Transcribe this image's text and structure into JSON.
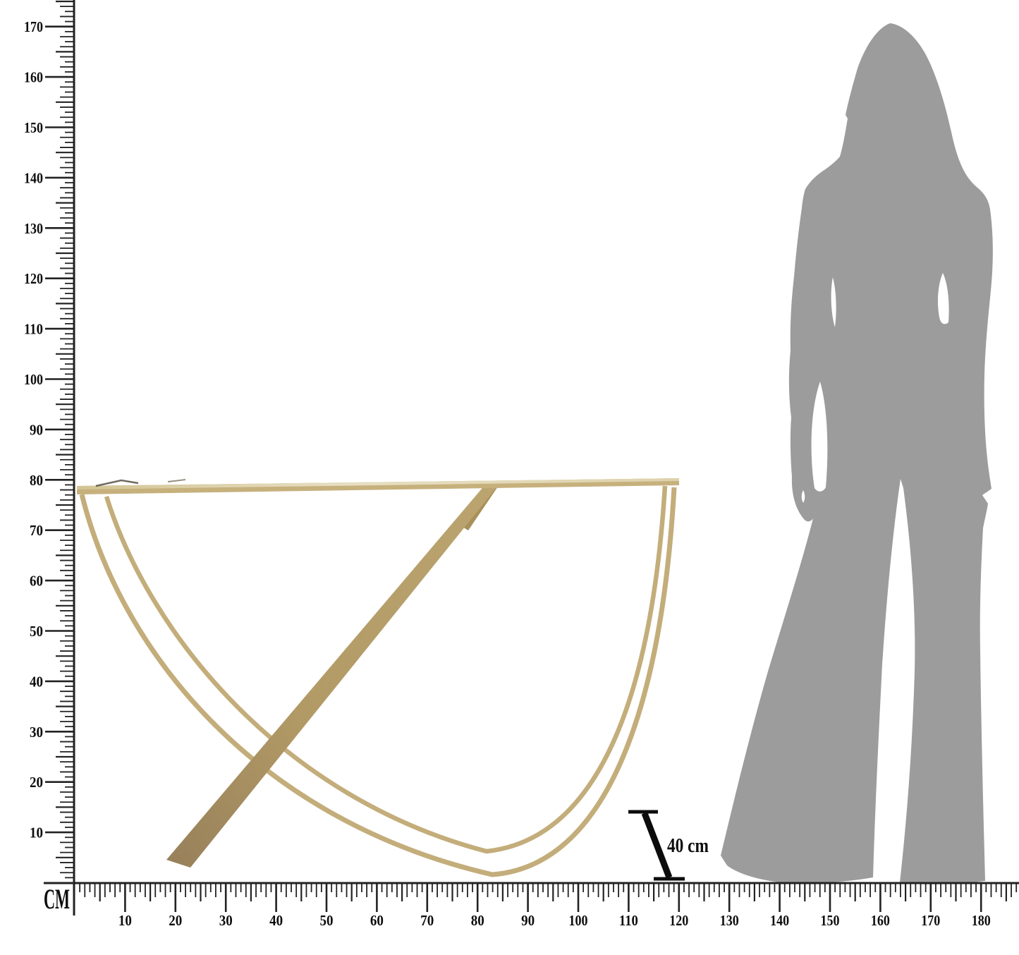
{
  "rulers": {
    "unit_label": "CM",
    "vertical": {
      "labels": [
        10,
        20,
        30,
        40,
        50,
        60,
        70,
        80,
        90,
        100,
        110,
        120,
        130,
        140,
        150,
        160,
        170
      ],
      "tick_min": 1,
      "tick_max": 175
    },
    "horizontal": {
      "labels": [
        10,
        20,
        30,
        40,
        50,
        60,
        70,
        80,
        90,
        100,
        110,
        120,
        130,
        140,
        150,
        160,
        170,
        180
      ],
      "tick_min": 1,
      "tick_max": 187
    }
  },
  "annotation": {
    "depth_label": "40 cm"
  },
  "colors": {
    "ink": "#222222",
    "label_ink": "#0d0d0d",
    "silhouette_gray": "#9c9c9c",
    "gold_band": "#c3ad7a",
    "gold_strut": "#ae9663",
    "gold_top_light": "#e4dbbd",
    "gold_top_edge": "#c6b07c",
    "background": "#ffffff"
  }
}
